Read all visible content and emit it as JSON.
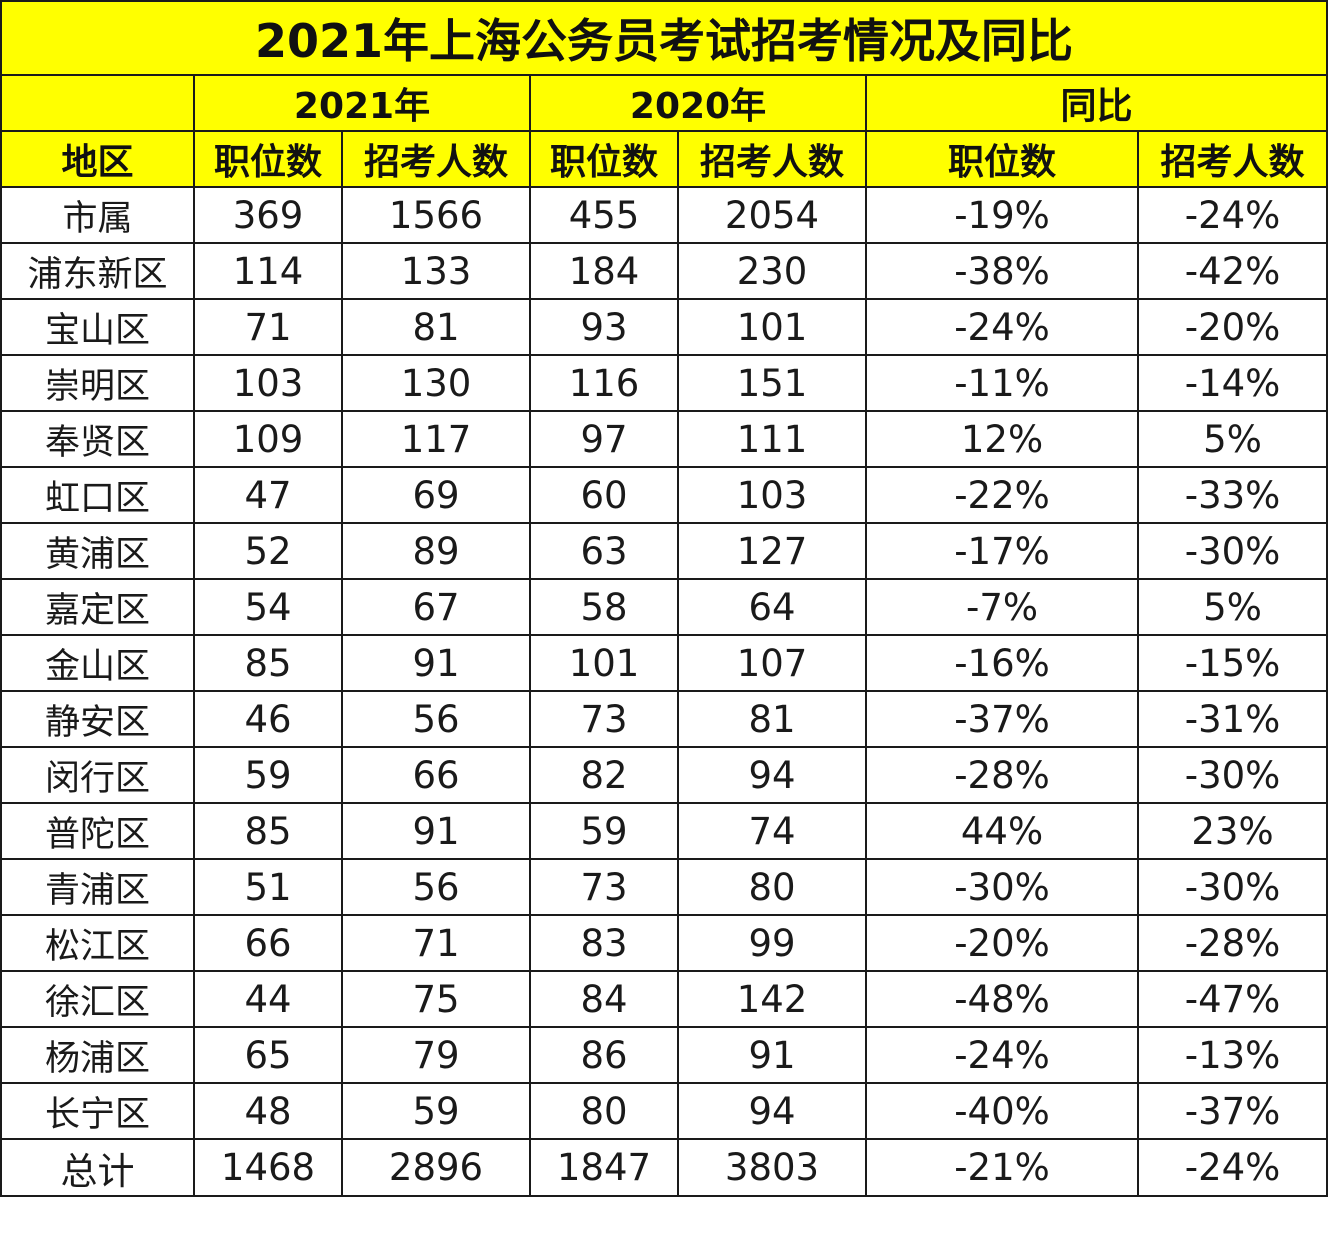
{
  "title": "2021年上海公务员考试招考情况及同比",
  "year_headers": [
    "2021年",
    "2020年",
    "同比"
  ],
  "column_headers": {
    "region": "地区",
    "positions_2021": "职位数",
    "recruits_2021": "招考人数",
    "positions_2020": "职位数",
    "recruits_2020": "招考人数",
    "positions_yoy": "职位数",
    "recruits_yoy": "招考人数"
  },
  "rows": [
    {
      "region": "市属",
      "p2021": "369",
      "r2021": "1566",
      "p2020": "455",
      "r2020": "2054",
      "p_yoy": "-19%",
      "r_yoy": "-24%"
    },
    {
      "region": "浦东新区",
      "p2021": "114",
      "r2021": "133",
      "p2020": "184",
      "r2020": "230",
      "p_yoy": "-38%",
      "r_yoy": "-42%"
    },
    {
      "region": "宝山区",
      "p2021": "71",
      "r2021": "81",
      "p2020": "93",
      "r2020": "101",
      "p_yoy": "-24%",
      "r_yoy": "-20%"
    },
    {
      "region": "崇明区",
      "p2021": "103",
      "r2021": "130",
      "p2020": "116",
      "r2020": "151",
      "p_yoy": "-11%",
      "r_yoy": "-14%"
    },
    {
      "region": "奉贤区",
      "p2021": "109",
      "r2021": "117",
      "p2020": "97",
      "r2020": "111",
      "p_yoy": "12%",
      "r_yoy": "5%"
    },
    {
      "region": "虹口区",
      "p2021": "47",
      "r2021": "69",
      "p2020": "60",
      "r2020": "103",
      "p_yoy": "-22%",
      "r_yoy": "-33%"
    },
    {
      "region": "黄浦区",
      "p2021": "52",
      "r2021": "89",
      "p2020": "63",
      "r2020": "127",
      "p_yoy": "-17%",
      "r_yoy": "-30%"
    },
    {
      "region": "嘉定区",
      "p2021": "54",
      "r2021": "67",
      "p2020": "58",
      "r2020": "64",
      "p_yoy": "-7%",
      "r_yoy": "5%"
    },
    {
      "region": "金山区",
      "p2021": "85",
      "r2021": "91",
      "p2020": "101",
      "r2020": "107",
      "p_yoy": "-16%",
      "r_yoy": "-15%"
    },
    {
      "region": "静安区",
      "p2021": "46",
      "r2021": "56",
      "p2020": "73",
      "r2020": "81",
      "p_yoy": "-37%",
      "r_yoy": "-31%"
    },
    {
      "region": "闵行区",
      "p2021": "59",
      "r2021": "66",
      "p2020": "82",
      "r2020": "94",
      "p_yoy": "-28%",
      "r_yoy": "-30%"
    },
    {
      "region": "普陀区",
      "p2021": "85",
      "r2021": "91",
      "p2020": "59",
      "r2020": "74",
      "p_yoy": "44%",
      "r_yoy": "23%"
    },
    {
      "region": "青浦区",
      "p2021": "51",
      "r2021": "56",
      "p2020": "73",
      "r2020": "80",
      "p_yoy": "-30%",
      "r_yoy": "-30%"
    },
    {
      "region": "松江区",
      "p2021": "66",
      "r2021": "71",
      "p2020": "83",
      "r2020": "99",
      "p_yoy": "-20%",
      "r_yoy": "-28%"
    },
    {
      "region": "徐汇区",
      "p2021": "44",
      "r2021": "75",
      "p2020": "84",
      "r2020": "142",
      "p_yoy": "-48%",
      "r_yoy": "-47%"
    },
    {
      "region": "杨浦区",
      "p2021": "65",
      "r2021": "79",
      "p2020": "86",
      "r2020": "91",
      "p_yoy": "-24%",
      "r_yoy": "-13%"
    },
    {
      "region": "长宁区",
      "p2021": "48",
      "r2021": "59",
      "p2020": "80",
      "r2020": "94",
      "p_yoy": "-40%",
      "r_yoy": "-37%"
    }
  ],
  "total": {
    "region": "总计",
    "p2021": "1468",
    "r2021": "2896",
    "p2020": "1847",
    "r2020": "3803",
    "p_yoy": "-21%",
    "r_yoy": "-24%"
  },
  "colors": {
    "header_bg": "#ffff00",
    "border": "#1a1a1a",
    "text": "#1a1a1a"
  }
}
